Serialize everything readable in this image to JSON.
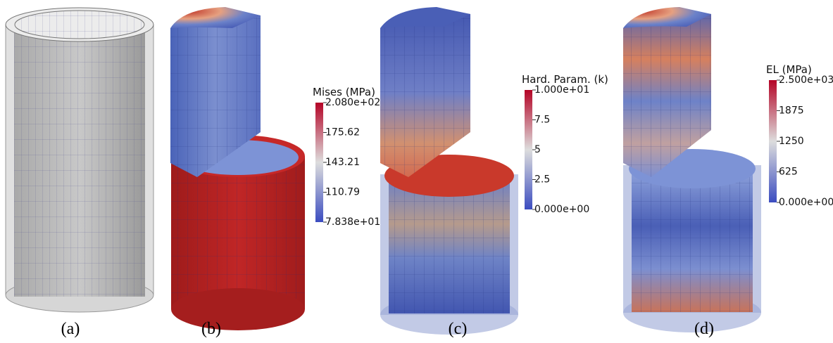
{
  "panels": [
    {
      "label": "(a)"
    },
    {
      "label": "(b)",
      "colorbar": {
        "title": "Mises (MPa)",
        "ticks": [
          "2.080e+02",
          "175.62",
          "143.21",
          "110.79",
          "7.838e+01"
        ]
      }
    },
    {
      "label": "(c)",
      "colorbar": {
        "title": "Hard. Param. (k)",
        "ticks": [
          "1.000e+01",
          "7.5",
          "5",
          "2.5",
          "0.000e+00"
        ]
      }
    },
    {
      "label": "(d)",
      "colorbar": {
        "title": "EL (MPa)",
        "ticks": [
          "2.500e+03",
          "1875",
          "1250",
          "625",
          "0.000e+00"
        ]
      }
    }
  ]
}
